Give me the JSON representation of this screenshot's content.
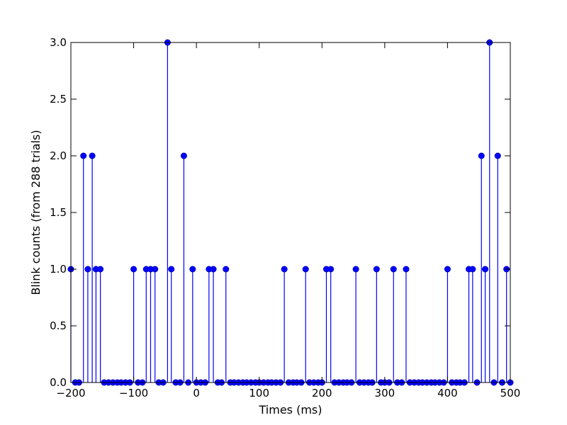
{
  "chart_data": {
    "type": "stem",
    "xlabel": "Times (ms)",
    "ylabel": "Blink counts (from 288 trials)",
    "xlim": [
      -200,
      500
    ],
    "ylim": [
      0.0,
      3.0
    ],
    "x_ticks": [
      -200,
      -100,
      0,
      100,
      200,
      300,
      400,
      500
    ],
    "x_tick_labels": [
      "−200",
      "−100",
      "0",
      "100",
      "200",
      "300",
      "400",
      "500"
    ],
    "y_ticks": [
      0.0,
      0.5,
      1.0,
      1.5,
      2.0,
      2.5,
      3.0
    ],
    "y_tick_labels": [
      "0.0",
      "0.5",
      "1.0",
      "1.5",
      "2.0",
      "2.5",
      "3.0"
    ],
    "marker_color": "#0000ff",
    "series": [
      {
        "x": [
          -200,
          -193,
          -187,
          -180,
          -173,
          -166,
          -160,
          -153,
          -147,
          -140,
          -133,
          -126,
          -120,
          -113,
          -106,
          -100,
          -93,
          -86,
          -80,
          -73,
          -66,
          -60,
          -53,
          -46,
          -40,
          -33,
          -26,
          -20,
          -13,
          -6,
          0,
          7,
          14,
          20,
          27,
          34,
          40,
          47,
          54,
          60,
          67,
          74,
          80,
          87,
          94,
          100,
          107,
          114,
          120,
          127,
          134,
          140,
          147,
          154,
          160,
          167,
          174,
          180,
          187,
          194,
          200,
          207,
          214,
          220,
          227,
          234,
          240,
          247,
          254,
          260,
          267,
          274,
          280,
          287,
          294,
          300,
          307,
          314,
          320,
          327,
          334,
          340,
          347,
          354,
          360,
          367,
          374,
          380,
          387,
          394,
          400,
          407,
          414,
          420,
          427,
          434,
          440,
          447,
          454,
          460,
          467,
          474,
          480,
          487,
          494,
          500
        ],
        "values": [
          1,
          0,
          0,
          2,
          1,
          2,
          1,
          1,
          0,
          0,
          0,
          0,
          0,
          0,
          0,
          1,
          0,
          0,
          1,
          1,
          1,
          0,
          0,
          3,
          1,
          0,
          0,
          2,
          0,
          1,
          0,
          0,
          0,
          1,
          1,
          0,
          0,
          1,
          0,
          0,
          0,
          0,
          0,
          0,
          0,
          0,
          0,
          0,
          0,
          0,
          0,
          1,
          0,
          0,
          0,
          0,
          1,
          0,
          0,
          0,
          0,
          1,
          1,
          0,
          0,
          0,
          0,
          0,
          1,
          0,
          0,
          0,
          0,
          1,
          0,
          0,
          0,
          1,
          0,
          0,
          1,
          0,
          0,
          0,
          0,
          0,
          0,
          0,
          0,
          0,
          1,
          0,
          0,
          0,
          0,
          1,
          1,
          0,
          2,
          1,
          3,
          0,
          2,
          0,
          1,
          0
        ]
      }
    ]
  }
}
